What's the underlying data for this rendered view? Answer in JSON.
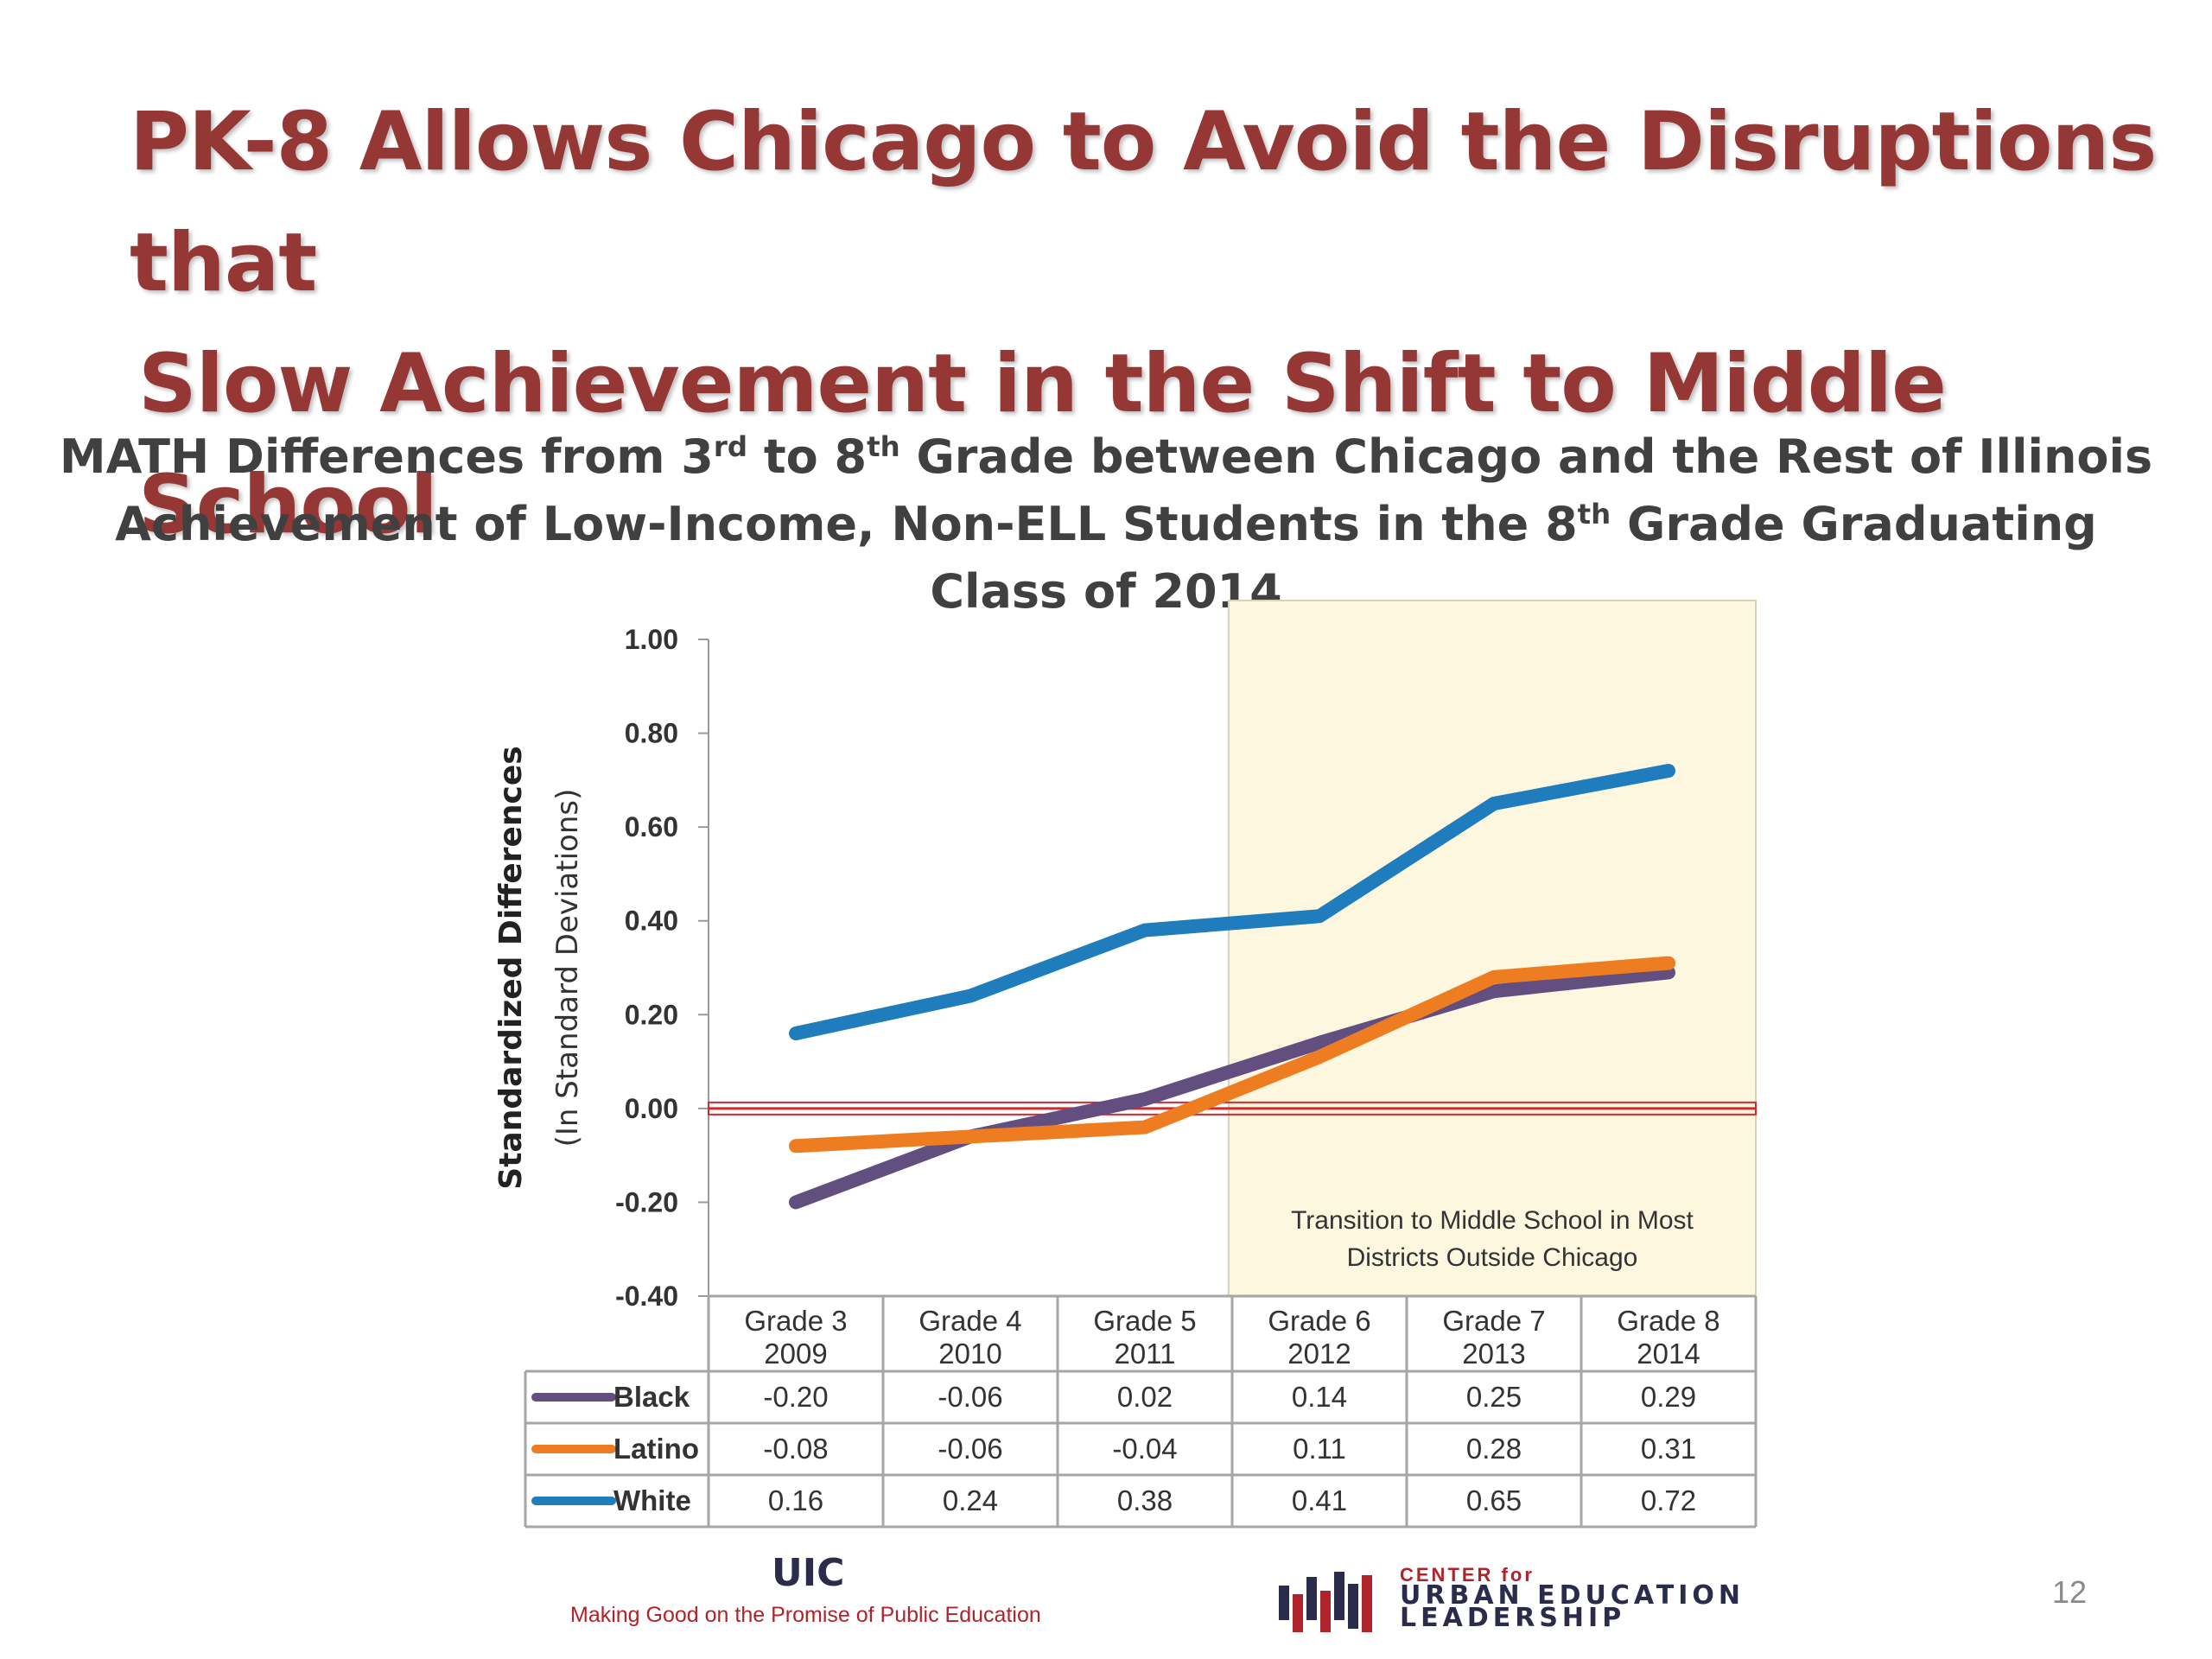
{
  "slide": {
    "title_line1": "PK-8 Allows Chicago to Avoid the Disruptions that",
    "title_line2": "Slow Achievement in the Shift to Middle School",
    "subtitle_line1_a": "MATH Differences from 3",
    "subtitle_line1_sup1": "rd",
    "subtitle_line1_b": " to 8",
    "subtitle_line1_sup2": "th",
    "subtitle_line1_c": " Grade between Chicago and the Rest of Illinois",
    "subtitle_line2_a": "Achievement of Low-Income, Non-ELL Students in the 8",
    "subtitle_line2_sup": "th",
    "subtitle_line2_b": " Grade Graduating Class of 2014",
    "page_number": "12"
  },
  "footer": {
    "uic": "UIC",
    "tagline": "Making Good on the Promise of Public Education",
    "center_small": "CENTER for",
    "center_line1": "URBAN EDUCATION",
    "center_line2": "LEADERSHIP"
  },
  "chart_data": {
    "type": "line",
    "ylabel": "Standardized Differences",
    "ylabel_sub": "(In Standard Deviations)",
    "ylim": [
      -0.4,
      1.0
    ],
    "yticks": [
      "1.00",
      "0.80",
      "0.60",
      "0.40",
      "0.20",
      "0.00",
      "-0.20",
      "-0.40"
    ],
    "categories": [
      "Grade 3",
      "Grade 4",
      "Grade 5",
      "Grade 6",
      "Grade 7",
      "Grade 8"
    ],
    "categories_sub": [
      "2009",
      "2010",
      "2011",
      "2012",
      "2013",
      "2014"
    ],
    "series": [
      {
        "name": "Black",
        "color": "#634f7f",
        "values": [
          -0.2,
          -0.06,
          0.02,
          0.14,
          0.25,
          0.29
        ],
        "labels": [
          "-0.20",
          "-0.06",
          "0.02",
          "0.14",
          "0.25",
          "0.29"
        ]
      },
      {
        "name": "Latino",
        "color": "#ee7d21",
        "values": [
          -0.08,
          -0.06,
          -0.04,
          0.11,
          0.28,
          0.31
        ],
        "labels": [
          "-0.08",
          "-0.06",
          "-0.04",
          "0.11",
          "0.28",
          "0.31"
        ]
      },
      {
        "name": "White",
        "color": "#1f7dbd",
        "values": [
          0.16,
          0.24,
          0.38,
          0.41,
          0.65,
          0.72
        ],
        "labels": [
          "0.16",
          "0.24",
          "0.38",
          "0.41",
          "0.65",
          "0.72"
        ]
      }
    ],
    "shaded_region": {
      "from_category": "Grade 5",
      "to_category": "Grade 8",
      "color": "#fdf7df",
      "annotation_line1": "Transition to Middle School in Most",
      "annotation_line2": "Districts Outside  Chicago"
    },
    "reference_line": {
      "y": 0.0,
      "color": "#d9262b"
    },
    "grid": false,
    "legend": "data-table"
  }
}
